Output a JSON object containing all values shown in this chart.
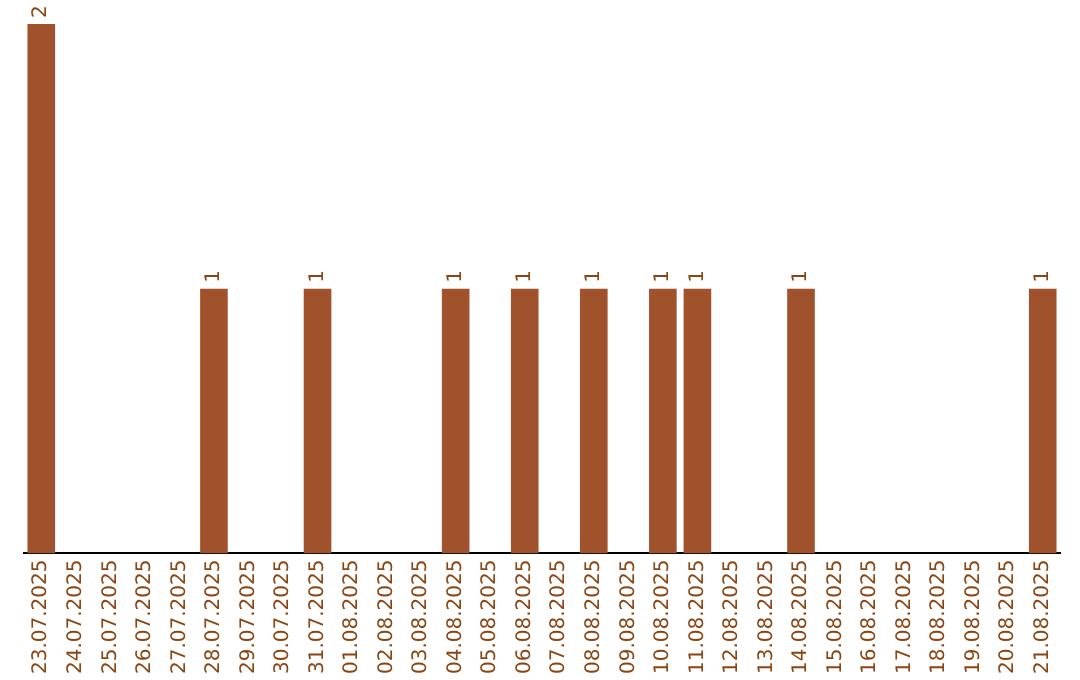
{
  "chart_data": {
    "type": "bar",
    "categories": [
      "23.07.2025",
      "24.07.2025",
      "25.07.2025",
      "26.07.2025",
      "27.07.2025",
      "28.07.2025",
      "29.07.2025",
      "30.07.2025",
      "31.07.2025",
      "01.08.2025",
      "02.08.2025",
      "03.08.2025",
      "04.08.2025",
      "05.08.2025",
      "06.08.2025",
      "07.08.2025",
      "08.08.2025",
      "09.08.2025",
      "10.08.2025",
      "11.08.2025",
      "12.08.2025",
      "13.08.2025",
      "14.08.2025",
      "15.08.2025",
      "16.08.2025",
      "17.08.2025",
      "18.08.2025",
      "19.08.2025",
      "20.08.2025",
      "21.08.2025"
    ],
    "values": [
      2,
      0,
      0,
      0,
      0,
      1,
      0,
      0,
      1,
      0,
      0,
      0,
      1,
      0,
      1,
      0,
      1,
      0,
      1,
      1,
      0,
      0,
      1,
      0,
      0,
      0,
      0,
      0,
      0,
      1
    ],
    "value_labels": [
      "2",
      null,
      null,
      null,
      null,
      "1",
      null,
      null,
      "1",
      null,
      null,
      null,
      "1",
      null,
      "1",
      null,
      "1",
      null,
      "1",
      "1",
      null,
      null,
      "1",
      null,
      null,
      null,
      null,
      null,
      null,
      "1"
    ],
    "color": "#a0522d",
    "ylim": [
      0,
      2
    ],
    "tick_labels": "x",
    "grid": false,
    "legend": false
  }
}
